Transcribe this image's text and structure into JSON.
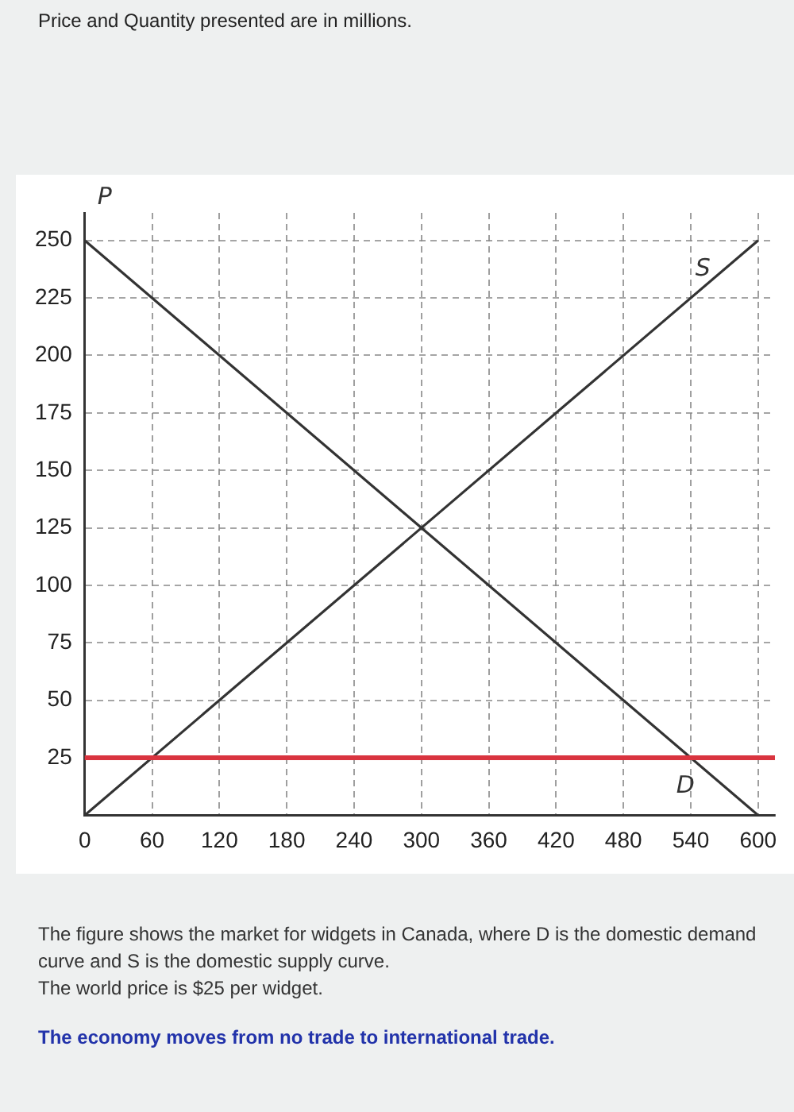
{
  "chart_data": {
    "type": "line",
    "title": "Price and Quantity presented are in millions.",
    "ylabel": "P",
    "x": [
      0,
      600
    ],
    "series": [
      {
        "name": "S",
        "color": "#333333",
        "values": [
          0,
          250
        ]
      },
      {
        "name": "D",
        "color": "#333333",
        "values": [
          250,
          0
        ]
      }
    ],
    "xlim": [
      0,
      615
    ],
    "xticks": [
      0,
      60,
      120,
      180,
      240,
      300,
      360,
      420,
      480,
      540,
      600
    ],
    "ylim": [
      0,
      262
    ],
    "yticks": [
      25,
      50,
      75,
      100,
      125,
      150,
      175,
      200,
      225,
      250
    ],
    "grid": true,
    "legend": false,
    "marker": "none",
    "line_style": "solid",
    "ref_lines": [
      {
        "axis": "y",
        "value": 25,
        "color": "#d9343f"
      }
    ],
    "annotations": [
      "The figure shows the market for widgets in Canada, where D is the domestic demand curve and S is the domestic supply curve.",
      "The world price is $25 per widget.",
      "The economy moves from no trade to international trade."
    ]
  }
}
